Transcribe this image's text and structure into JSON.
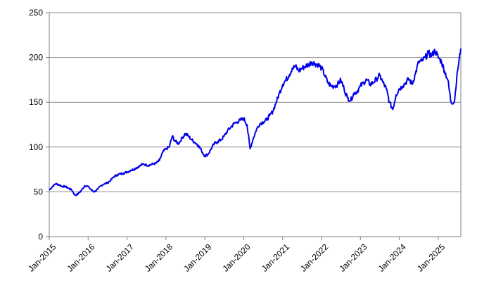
{
  "chart_data": {
    "type": "line",
    "title": "",
    "xlabel": "",
    "ylabel": "",
    "ylim": [
      0,
      250
    ],
    "yticks": [
      0,
      50,
      100,
      150,
      200,
      250
    ],
    "xlim": [
      "2015-01-01",
      "2025-08-01"
    ],
    "xticks": [
      "2015-01-01",
      "2016-01-01",
      "2017-01-01",
      "2018-01-01",
      "2019-01-01",
      "2020-01-01",
      "2021-01-01",
      "2022-01-01",
      "2023-01-01",
      "2024-01-01",
      "2025-01-01"
    ],
    "xtick_labels": [
      "Jan-2015",
      "Jan-2016",
      "Jan-2017",
      "Jan-2018",
      "Jan-2019",
      "Jan-2020",
      "Jan-2021",
      "Jan-2022",
      "Jan-2023",
      "Jan-2024",
      "Jan-2025"
    ],
    "grid": "horizontal",
    "legend": "none",
    "line_color": "#0000e6",
    "series": [
      {
        "x": [
          "2015-01-01",
          "2015-02-01",
          "2015-03-01",
          "2015-04-01",
          "2015-05-01",
          "2015-06-01",
          "2015-07-01",
          "2015-08-01",
          "2015-09-01",
          "2015-10-01",
          "2015-11-01",
          "2015-12-01",
          "2016-01-01",
          "2016-02-01",
          "2016-03-01",
          "2016-04-01",
          "2016-05-01",
          "2016-06-01",
          "2016-07-01",
          "2016-08-01",
          "2016-09-01",
          "2016-10-01",
          "2016-11-01",
          "2016-12-01",
          "2017-01-01",
          "2017-02-01",
          "2017-03-01",
          "2017-04-01",
          "2017-05-01",
          "2017-06-01",
          "2017-07-01",
          "2017-08-01",
          "2017-09-01",
          "2017-10-01",
          "2017-11-01",
          "2017-12-01",
          "2018-01-01",
          "2018-02-01",
          "2018-03-01",
          "2018-04-01",
          "2018-05-01",
          "2018-06-01",
          "2018-07-01",
          "2018-08-01",
          "2018-09-01",
          "2018-10-01",
          "2018-11-01",
          "2018-12-01",
          "2019-01-01",
          "2019-02-01",
          "2019-03-01",
          "2019-04-01",
          "2019-05-01",
          "2019-06-01",
          "2019-07-01",
          "2019-08-01",
          "2019-09-01",
          "2019-10-01",
          "2019-11-01",
          "2019-12-01",
          "2020-01-01",
          "2020-02-01",
          "2020-03-01",
          "2020-04-01",
          "2020-05-01",
          "2020-06-01",
          "2020-07-01",
          "2020-08-01",
          "2020-09-01",
          "2020-10-01",
          "2020-11-01",
          "2020-12-01",
          "2021-01-01",
          "2021-02-01",
          "2021-03-01",
          "2021-04-01",
          "2021-05-01",
          "2021-06-01",
          "2021-07-01",
          "2021-08-01",
          "2021-09-01",
          "2021-10-01",
          "2021-11-01",
          "2021-12-01",
          "2022-01-01",
          "2022-02-01",
          "2022-03-01",
          "2022-04-01",
          "2022-05-01",
          "2022-06-01",
          "2022-07-01",
          "2022-08-01",
          "2022-09-01",
          "2022-10-01",
          "2022-11-01",
          "2022-12-01",
          "2023-01-01",
          "2023-02-01",
          "2023-03-01",
          "2023-04-01",
          "2023-05-01",
          "2023-06-01",
          "2023-07-01",
          "2023-08-01",
          "2023-09-01",
          "2023-10-01",
          "2023-11-01",
          "2023-12-01",
          "2024-01-01",
          "2024-02-01",
          "2024-03-01",
          "2024-04-01",
          "2024-05-01",
          "2024-06-01",
          "2024-07-01",
          "2024-08-01",
          "2024-09-01",
          "2024-10-01",
          "2024-11-01",
          "2024-12-01",
          "2025-01-01",
          "2025-02-01",
          "2025-03-01",
          "2025-04-01",
          "2025-05-01",
          "2025-06-01",
          "2025-07-01",
          "2025-08-01"
        ],
        "values": [
          52,
          56,
          59,
          58,
          56,
          56,
          54,
          52,
          46,
          48,
          52,
          57,
          56,
          52,
          50,
          53,
          57,
          59,
          60,
          63,
          67,
          69,
          70,
          71,
          72,
          74,
          75,
          77,
          79,
          81,
          80,
          80,
          81,
          82,
          85,
          94,
          98,
          100,
          112,
          106,
          104,
          110,
          115,
          112,
          108,
          105,
          102,
          96,
          90,
          92,
          98,
          104,
          106,
          108,
          112,
          118,
          122,
          126,
          128,
          130,
          132,
          125,
          98,
          110,
          120,
          126,
          128,
          130,
          135,
          140,
          150,
          160,
          170,
          175,
          180,
          188,
          190,
          185,
          188,
          190,
          192,
          195,
          193,
          192,
          188,
          180,
          172,
          168,
          168,
          170,
          175,
          165,
          155,
          152,
          160,
          162,
          168,
          172,
          175,
          170,
          172,
          176,
          180,
          172,
          165,
          150,
          142,
          158,
          165,
          168,
          172,
          176,
          170,
          182,
          195,
          196,
          200,
          205,
          202,
          208,
          200,
          195,
          185,
          175,
          150,
          150,
          185,
          210
        ]
      }
    ]
  }
}
